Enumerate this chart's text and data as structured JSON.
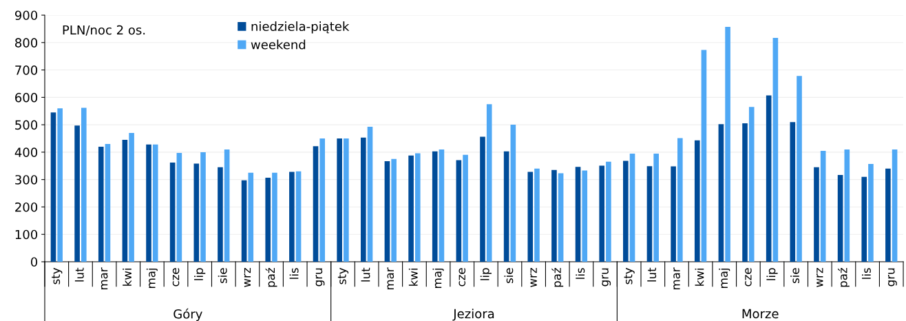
{
  "chart_data": {
    "type": "bar",
    "ylabel": "PLN/noc 2 os.",
    "categories": [
      "sty",
      "lut",
      "mar",
      "kwi",
      "maj",
      "cze",
      "lip",
      "sie",
      "wrz",
      "paź",
      "lis",
      "gru",
      "sty",
      "lut",
      "mar",
      "kwi",
      "maj",
      "cze",
      "lip",
      "sie",
      "wrz",
      "paź",
      "lis",
      "gru",
      "sty",
      "lut",
      "mar",
      "kwi",
      "maj",
      "cze",
      "lip",
      "sie",
      "wrz",
      "paź",
      "lis",
      "gru"
    ],
    "series": [
      {
        "name": "niedziela-piątek",
        "color": "#004c99",
        "values": [
          545,
          497,
          420,
          445,
          428,
          362,
          358,
          345,
          297,
          307,
          328,
          422,
          450,
          453,
          367,
          388,
          403,
          371,
          456,
          403,
          328,
          335,
          346,
          351,
          368,
          349,
          348,
          443,
          502,
          505,
          607,
          510,
          345,
          317,
          310,
          340
        ]
      },
      {
        "name": "weekend",
        "color": "#4fa8f5",
        "values": [
          560,
          562,
          430,
          470,
          428,
          397,
          400,
          410,
          325,
          325,
          330,
          450,
          450,
          493,
          375,
          396,
          410,
          390,
          575,
          500,
          340,
          323,
          333,
          365,
          395,
          395,
          451,
          773,
          857,
          565,
          817,
          678,
          405,
          410,
          357,
          410
        ]
      }
    ],
    "annotations": [
      "Góry",
      "Jeziora",
      "Morze"
    ],
    "ylim": [
      0,
      900
    ],
    "yticks": [
      0,
      100,
      200,
      300,
      400,
      500,
      600,
      700,
      800,
      900
    ],
    "grid": "y",
    "legend": "top"
  }
}
